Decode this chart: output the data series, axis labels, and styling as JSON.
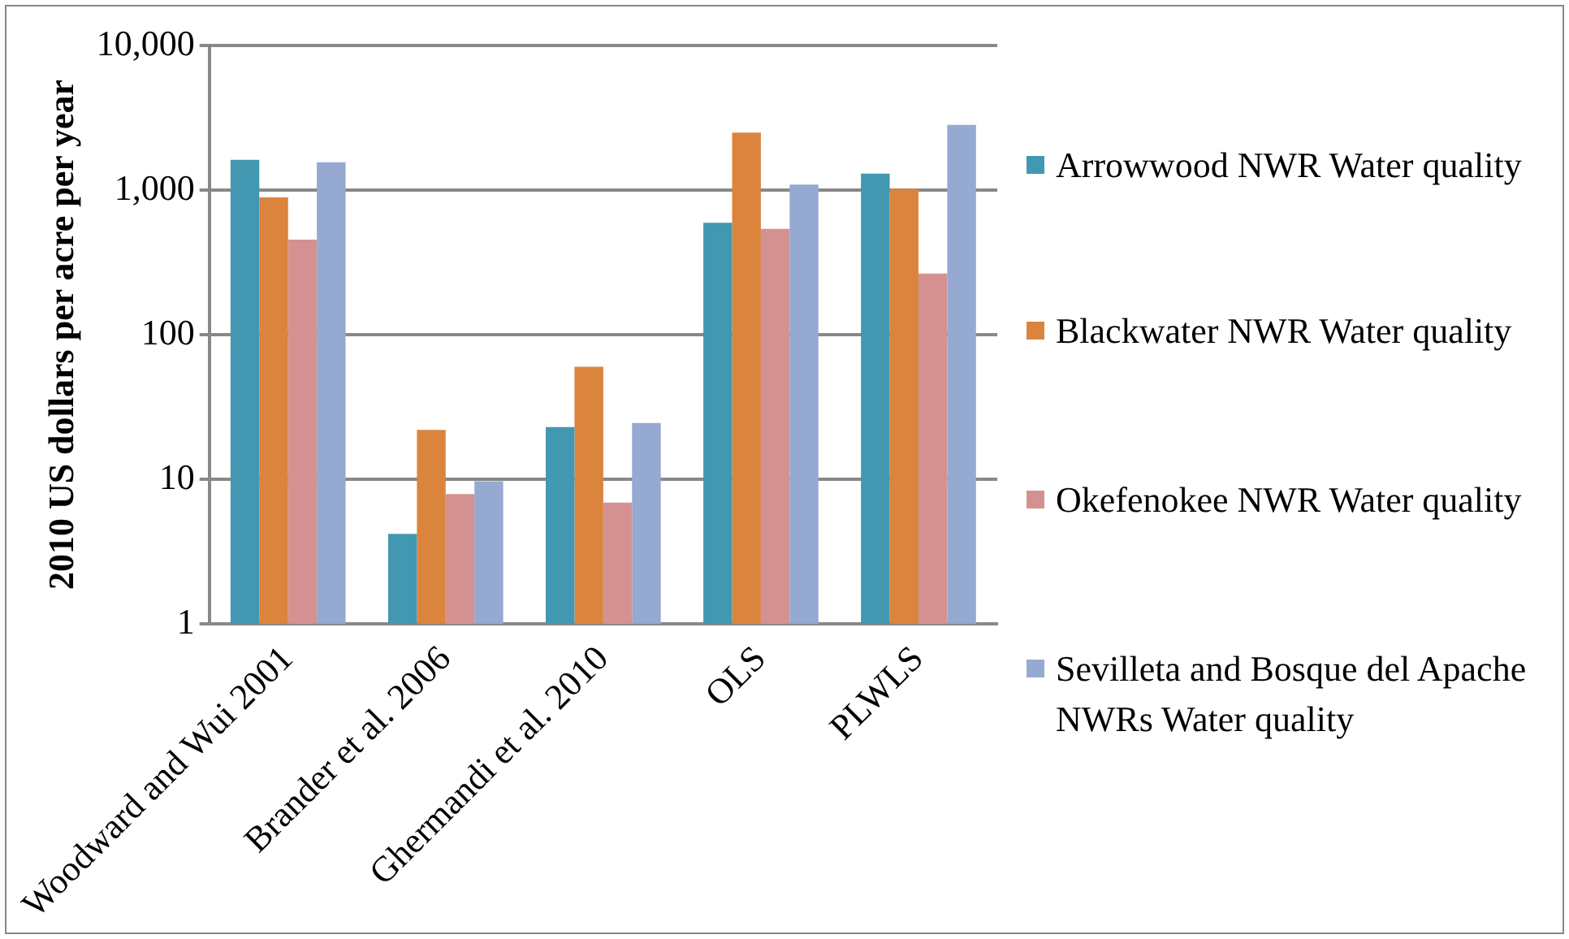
{
  "chart_data": {
    "type": "bar",
    "ylabel": "2010 US dollars per acre per year",
    "categories": [
      "Woodward and Wui 2001",
      "Brander et al. 2006",
      "Ghermandi et al. 2010",
      "OLS",
      "PLWLS"
    ],
    "series": [
      {
        "name": "Arrowwood NWR Water quality",
        "color": "#4298b0",
        "values": [
          1620,
          4.2,
          23,
          595,
          1300
        ]
      },
      {
        "name": "Blackwater NWR Water quality",
        "color": "#db843d",
        "values": [
          890,
          22,
          60,
          2500,
          1020
        ]
      },
      {
        "name": "Okefenokee NWR Water quality",
        "color": "#d39291",
        "values": [
          455,
          7.9,
          6.9,
          540,
          265
        ]
      },
      {
        "name": "Sevilleta and Bosque del Apache NWRs Water quality",
        "color": "#95a9d1",
        "values": [
          1560,
          9.7,
          24.5,
          1090,
          2820
        ]
      }
    ],
    "log": "y",
    "ylim": [
      1,
      10000
    ],
    "yticks": [
      1,
      10,
      100,
      {
        "value": 1000,
        "label": "1,000"
      },
      {
        "value": 10000,
        "label": "10,000"
      }
    ],
    "grid": "y",
    "legend": "right"
  }
}
